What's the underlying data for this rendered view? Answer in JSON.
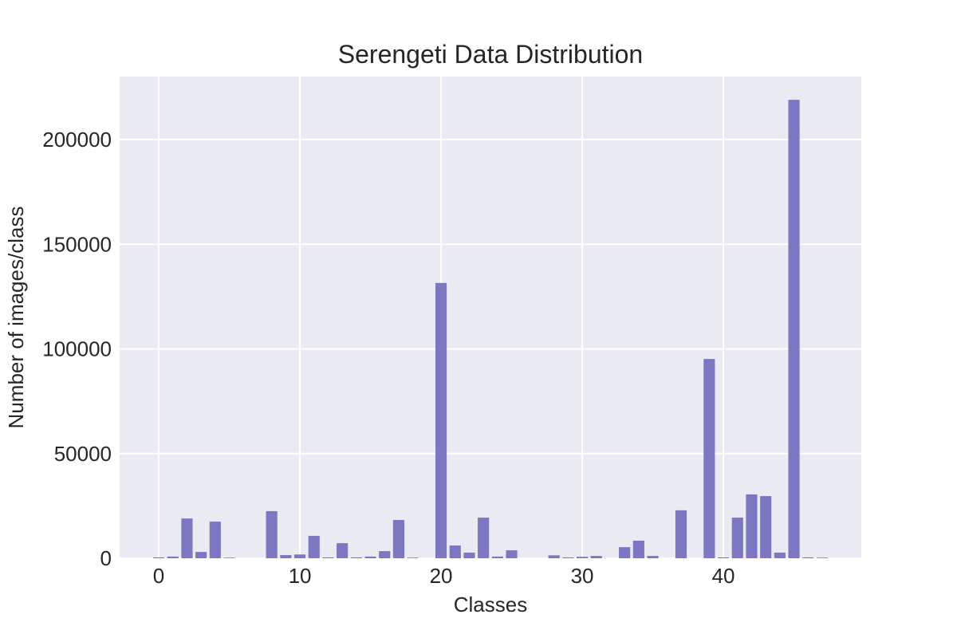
{
  "chart_data": {
    "type": "bar",
    "title": "Serengeti Data Distribution",
    "xlabel": "Classes",
    "ylabel": "Number of images/class",
    "xlim": [
      -2.77,
      49.77
    ],
    "ylim": [
      0,
      230100
    ],
    "xticks": [
      0,
      10,
      20,
      30,
      40
    ],
    "yticks": [
      0,
      50000,
      100000,
      150000,
      200000
    ],
    "grid": true,
    "background": "#eaeaf2",
    "bar_color": "#7b77c2",
    "categories": [
      0,
      1,
      2,
      3,
      4,
      5,
      6,
      7,
      8,
      9,
      10,
      11,
      12,
      13,
      14,
      15,
      16,
      17,
      18,
      19,
      20,
      21,
      22,
      23,
      24,
      25,
      26,
      27,
      28,
      29,
      30,
      31,
      32,
      33,
      34,
      35,
      36,
      37,
      38,
      39,
      40,
      41,
      42,
      43,
      44,
      45,
      46,
      47
    ],
    "values": [
      400,
      800,
      19000,
      3000,
      17500,
      300,
      0,
      0,
      22500,
      1500,
      1800,
      10700,
      400,
      7200,
      400,
      800,
      3400,
      18300,
      300,
      0,
      131500,
      6100,
      2700,
      19400,
      800,
      3800,
      0,
      0,
      1400,
      400,
      700,
      1100,
      0,
      5300,
      8400,
      1100,
      0,
      22900,
      0,
      95200,
      400,
      19400,
      30500,
      29700,
      2700,
      219000,
      400,
      300
    ]
  }
}
